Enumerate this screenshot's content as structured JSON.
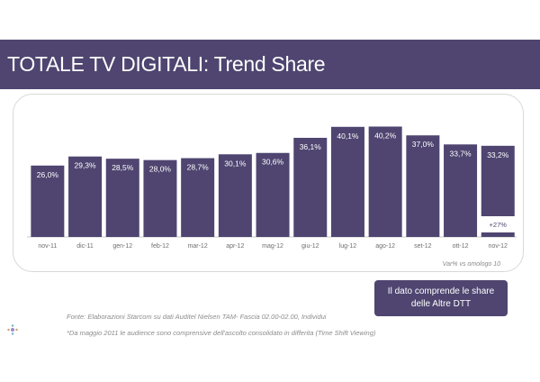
{
  "header": {
    "title": "TOTALE TV DIGITALI: Trend Share"
  },
  "chart_data": {
    "type": "bar",
    "categories": [
      "nov-11",
      "dic-11",
      "gen-12",
      "feb-12",
      "mar-12",
      "apr-12",
      "mag-12",
      "giu-12",
      "lug-12",
      "ago-12",
      "set-12",
      "ott-12",
      "nov-12"
    ],
    "value_labels": [
      "26,0%",
      "29,3%",
      "28,5%",
      "28,0%",
      "28,7%",
      "30,1%",
      "30,6%",
      "36,1%",
      "40,1%",
      "40,2%",
      "37,0%",
      "33,7%",
      "33,2%"
    ],
    "values": [
      26.0,
      29.3,
      28.5,
      28.0,
      28.7,
      30.1,
      30.6,
      36.1,
      40.1,
      40.2,
      37.0,
      33.7,
      33.2
    ],
    "stacked_segment": {
      "category": "nov-12",
      "label": "+27%"
    },
    "ylim": [
      0,
      42
    ],
    "bar_color": "#4f4570",
    "grid": false,
    "note": "Var% vs omologo 10"
  },
  "callout": {
    "line1": "Il dato comprende le share",
    "line2": "delle Altre DTT"
  },
  "source": "Fonte: Elaborazioni Starcom su dati Auditel Nielsen TAM- Fascia 02.00-02.00, Individui",
  "footnote": "*Da maggio 2011 le audience sono comprensive dell'ascolto consolidato in differita (Time Shift Viewing)"
}
